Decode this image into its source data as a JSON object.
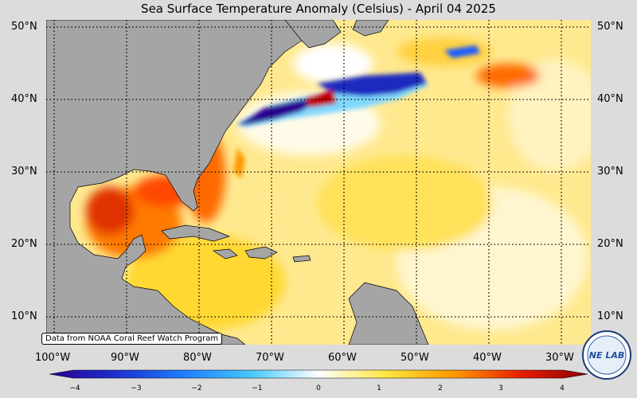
{
  "title": "Sea Surface Temperature Anomaly (Celsius) - April 04 2025",
  "credit": "Data from NOAA Coral Reef Watch Program",
  "lat_labels": [
    "50°N",
    "40°N",
    "30°N",
    "20°N",
    "10°N"
  ],
  "lon_labels": [
    "100°W",
    "90°W",
    "80°W",
    "70°W",
    "60°W",
    "50°W",
    "40°W",
    "30°W"
  ],
  "colorbar": {
    "ticks": [
      "−4",
      "−3",
      "−2",
      "−1",
      "0",
      "1",
      "2",
      "3",
      "4"
    ],
    "range": [
      -4,
      4
    ],
    "colors": [
      "#2a0090",
      "#1d2fd0",
      "#1f7fff",
      "#45c8ff",
      "#ffffff",
      "#ffe640",
      "#ff9a00",
      "#e81e00",
      "#8a0000"
    ]
  },
  "map": {
    "ocean_color": "#ffe88a",
    "land_color": "#a5a5a5",
    "lat_range": [
      6,
      51
    ],
    "lon_range": [
      -101.5,
      -26
    ]
  },
  "logo_text": "NE LAB",
  "icons": [
    "logo-icon"
  ]
}
